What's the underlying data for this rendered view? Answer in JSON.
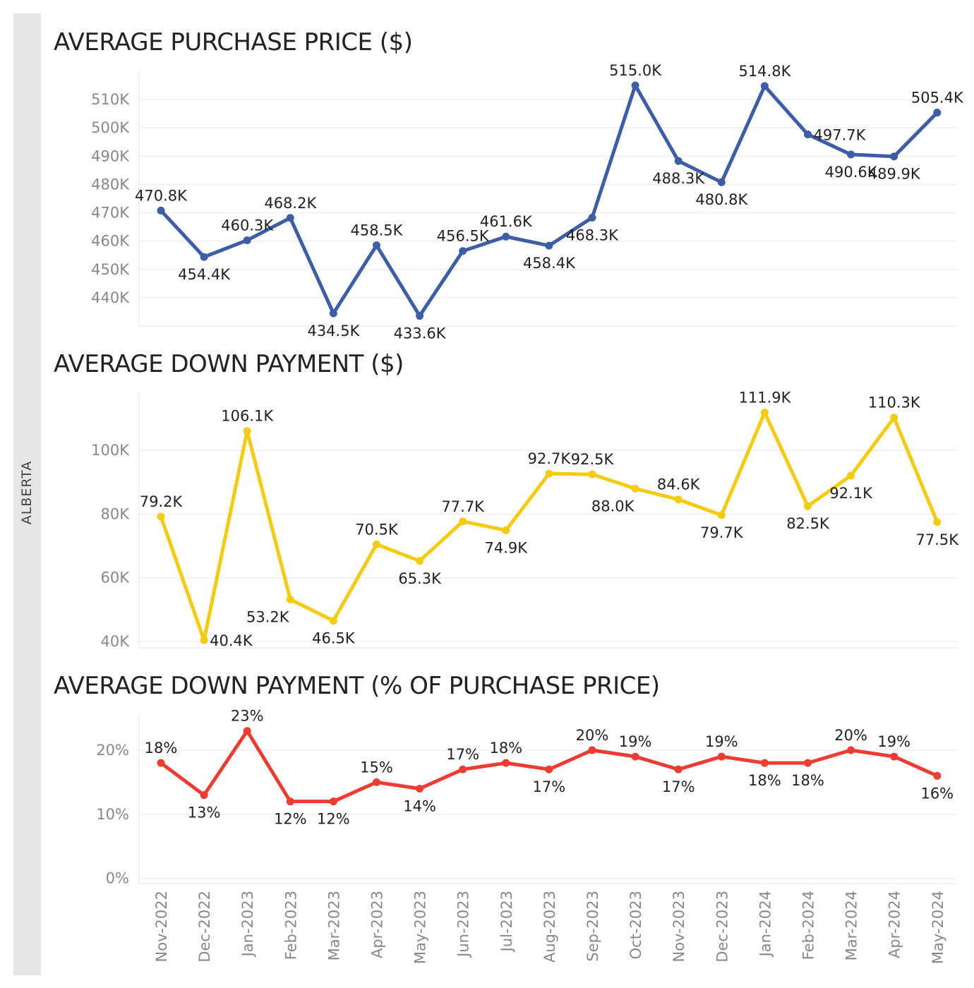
{
  "region_label": "ALBERTA",
  "months": [
    "Nov-2022",
    "Dec-2022",
    "Jan-2023",
    "Feb-2023",
    "Mar-2023",
    "Apr-2023",
    "May-2023",
    "Jun-2023",
    "Jul-2023",
    "Aug-2023",
    "Sep-2023",
    "Oct-2023",
    "Nov-2023",
    "Dec-2023",
    "Jan-2024",
    "Feb-2024",
    "Mar-2024",
    "Apr-2024",
    "May-2024"
  ],
  "chart_data": [
    {
      "type": "line",
      "title": "AVERAGE PURCHASE PRICE ($)",
      "color": "#3d5da8",
      "ylim": [
        430,
        520
      ],
      "yticks": [
        440,
        450,
        460,
        470,
        480,
        490,
        500,
        510
      ],
      "ytick_labels": [
        "440K",
        "450K",
        "460K",
        "470K",
        "480K",
        "490K",
        "500K",
        "510K"
      ],
      "values": [
        470.8,
        454.4,
        460.3,
        468.2,
        434.5,
        458.5,
        433.6,
        456.5,
        461.6,
        458.4,
        468.3,
        515.0,
        488.3,
        480.8,
        514.8,
        497.7,
        490.6,
        489.9,
        505.4
      ],
      "labels": [
        "470.8K",
        "454.4K",
        "460.3K",
        "468.2K",
        "434.5K",
        "458.5K",
        "433.6K",
        "456.5K",
        "461.6K",
        "458.4K",
        "468.3K",
        "515.0K",
        "488.3K",
        "480.8K",
        "514.8K",
        "497.7K",
        "490.6K",
        "489.9K",
        "505.4K"
      ],
      "label_pos": [
        "above",
        "below",
        "above",
        "above",
        "below",
        "above",
        "below",
        "above",
        "above",
        "below",
        "below",
        "above",
        "below",
        "below",
        "above",
        "right",
        "below",
        "below",
        "above"
      ],
      "grid": true
    },
    {
      "type": "line",
      "title": "AVERAGE DOWN PAYMENT ($)",
      "color": "#f5cb10",
      "ylim": [
        38,
        118
      ],
      "yticks": [
        40,
        60,
        80,
        100
      ],
      "ytick_labels": [
        "40K",
        "60K",
        "80K",
        "100K"
      ],
      "values": [
        79.2,
        40.4,
        106.1,
        53.2,
        46.5,
        70.5,
        65.3,
        77.7,
        74.9,
        92.7,
        92.5,
        88.0,
        84.6,
        79.7,
        111.9,
        82.5,
        92.1,
        110.3,
        77.5
      ],
      "labels": [
        "79.2K",
        "40.4K",
        "106.1K",
        "53.2K",
        "46.5K",
        "70.5K",
        "65.3K",
        "77.7K",
        "74.9K",
        "92.7K",
        "92.5K",
        "88.0K",
        "84.6K",
        "79.7K",
        "111.9K",
        "82.5K",
        "92.1K",
        "110.3K",
        "77.5K"
      ],
      "label_pos": [
        "above",
        "right",
        "above",
        "belowleft",
        "below",
        "above",
        "below",
        "above",
        "below",
        "above",
        "above",
        "belowleft",
        "above",
        "below",
        "above",
        "below",
        "below",
        "above",
        "below"
      ],
      "grid": true
    },
    {
      "type": "line",
      "title": "AVERAGE DOWN PAYMENT (% OF PURCHASE PRICE)",
      "color": "#ee3c32",
      "ylim": [
        -0.8,
        25.5
      ],
      "yticks": [
        0,
        10,
        20
      ],
      "ytick_labels": [
        "0%",
        "10%",
        "20%"
      ],
      "values": [
        18,
        13,
        23,
        12,
        12,
        15,
        14,
        17,
        18,
        17,
        20,
        19,
        17,
        19,
        18,
        18,
        20,
        19,
        16
      ],
      "labels": [
        "18%",
        "13%",
        "23%",
        "12%",
        "12%",
        "15%",
        "14%",
        "17%",
        "18%",
        "17%",
        "20%",
        "19%",
        "17%",
        "19%",
        "18%",
        "18%",
        "20%",
        "19%",
        "16%"
      ],
      "label_pos": [
        "above",
        "below",
        "above",
        "below",
        "below",
        "above",
        "below",
        "above",
        "above",
        "below",
        "above",
        "above",
        "below",
        "above",
        "below",
        "below",
        "above",
        "above",
        "below"
      ],
      "grid": true
    }
  ]
}
